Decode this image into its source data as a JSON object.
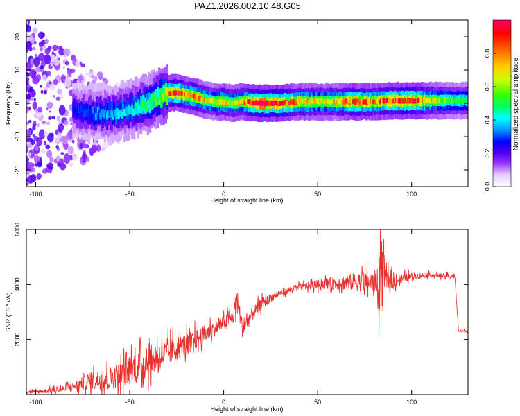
{
  "title": "PAZ1.2026.002.10.48.G05",
  "colors": {
    "snr_line": "#e8312e",
    "colormap": [
      "#ffffff",
      "#e6ccff",
      "#9933ff",
      "#5500ee",
      "#0000ff",
      "#0099ff",
      "#00ffff",
      "#00ff66",
      "#33ff00",
      "#ccff00",
      "#ffcc00",
      "#ff6600",
      "#ff0000",
      "#ff0066"
    ]
  },
  "chart_data": [
    {
      "type": "heatmap",
      "name": "spectrogram",
      "xlabel": "Height of straight line (km)",
      "ylabel": "Frequency (Hz)",
      "xlim": [
        -105,
        130
      ],
      "ylim": [
        -25,
        25
      ],
      "xticks": [
        -100,
        -50,
        0,
        50,
        100
      ],
      "xtick_labels": [
        "-100",
        "-50",
        "0",
        "50",
        "100"
      ],
      "yticks": [
        20,
        10,
        0,
        -10,
        -20
      ],
      "ytick_labels": [
        "20",
        "10",
        "0",
        "-10",
        "-20"
      ],
      "ridge": {
        "x": [
          -105,
          -90,
          -80,
          -70,
          -60,
          -50,
          -45,
          -40,
          -35,
          -30,
          -25,
          -20,
          -15,
          -10,
          -5,
          0,
          5,
          10,
          15,
          20,
          30,
          40,
          50,
          60,
          70,
          80,
          90,
          100,
          110,
          120,
          130
        ],
        "freq": [
          0,
          -1,
          -2,
          -3,
          -3,
          -2,
          -1,
          0,
          1.5,
          3,
          3.2,
          2.5,
          2,
          1,
          0.5,
          0.5,
          0,
          0.5,
          0.2,
          0,
          0,
          0.5,
          0.5,
          0.5,
          0.5,
          0.5,
          0.8,
          0.8,
          0.8,
          0.8,
          0.8
        ],
        "amplitude": [
          0.15,
          0.2,
          0.25,
          0.3,
          0.35,
          0.4,
          0.45,
          0.5,
          0.55,
          0.7,
          0.85,
          0.75,
          0.8,
          0.7,
          0.6,
          0.75,
          0.65,
          0.7,
          0.85,
          0.95,
          0.9,
          0.75,
          0.65,
          0.7,
          0.85,
          0.75,
          0.85,
          0.9,
          0.7,
          0.55,
          0.5
        ]
      },
      "colorbar": {
        "label": "Normalized spectral amplitude",
        "ticks": [
          0.0,
          0.2,
          0.4,
          0.6,
          0.8
        ],
        "tick_labels": [
          "0.0",
          "0.2",
          "0.4",
          "0.6",
          "0.8"
        ],
        "range": [
          0,
          1
        ]
      }
    },
    {
      "type": "line",
      "name": "snr",
      "xlabel": "Height of straight line (km)",
      "ylabel": "SNR (10 * v/v)",
      "xlim": [
        -105,
        130
      ],
      "ylim": [
        0,
        6000
      ],
      "xticks": [
        -100,
        -50,
        0,
        50,
        100
      ],
      "xtick_labels": [
        "-100",
        "-50",
        "0",
        "50",
        "100"
      ],
      "yticks": [
        2000,
        4000,
        6000
      ],
      "ytick_labels": [
        "2000",
        "4000",
        "6000"
      ],
      "x": [
        -105,
        -100,
        -90,
        -85,
        -80,
        -75,
        -70,
        -65,
        -60,
        -55,
        -50,
        -45,
        -40,
        -35,
        -30,
        -25,
        -20,
        -15,
        -10,
        -5,
        0,
        5,
        7,
        10,
        15,
        20,
        25,
        30,
        40,
        50,
        60,
        70,
        80,
        85,
        90,
        100,
        110,
        120,
        123,
        125,
        130
      ],
      "y": [
        100,
        100,
        150,
        200,
        300,
        400,
        500,
        550,
        600,
        700,
        900,
        1000,
        1200,
        1400,
        1500,
        1700,
        1800,
        2000,
        2200,
        2400,
        2600,
        2800,
        3500,
        2400,
        2900,
        3300,
        3500,
        3700,
        3900,
        4000,
        4050,
        4100,
        4100,
        4200,
        4100,
        4300,
        4350,
        4300,
        4300,
        2300,
        2300
      ],
      "noise": [
        80,
        80,
        120,
        150,
        200,
        300,
        400,
        450,
        500,
        600,
        700,
        700,
        700,
        650,
        600,
        550,
        500,
        450,
        400,
        350,
        300,
        350,
        500,
        400,
        300,
        250,
        200,
        150,
        150,
        200,
        300,
        400,
        500,
        600,
        300,
        150,
        100,
        100,
        100,
        60,
        60
      ]
    }
  ]
}
